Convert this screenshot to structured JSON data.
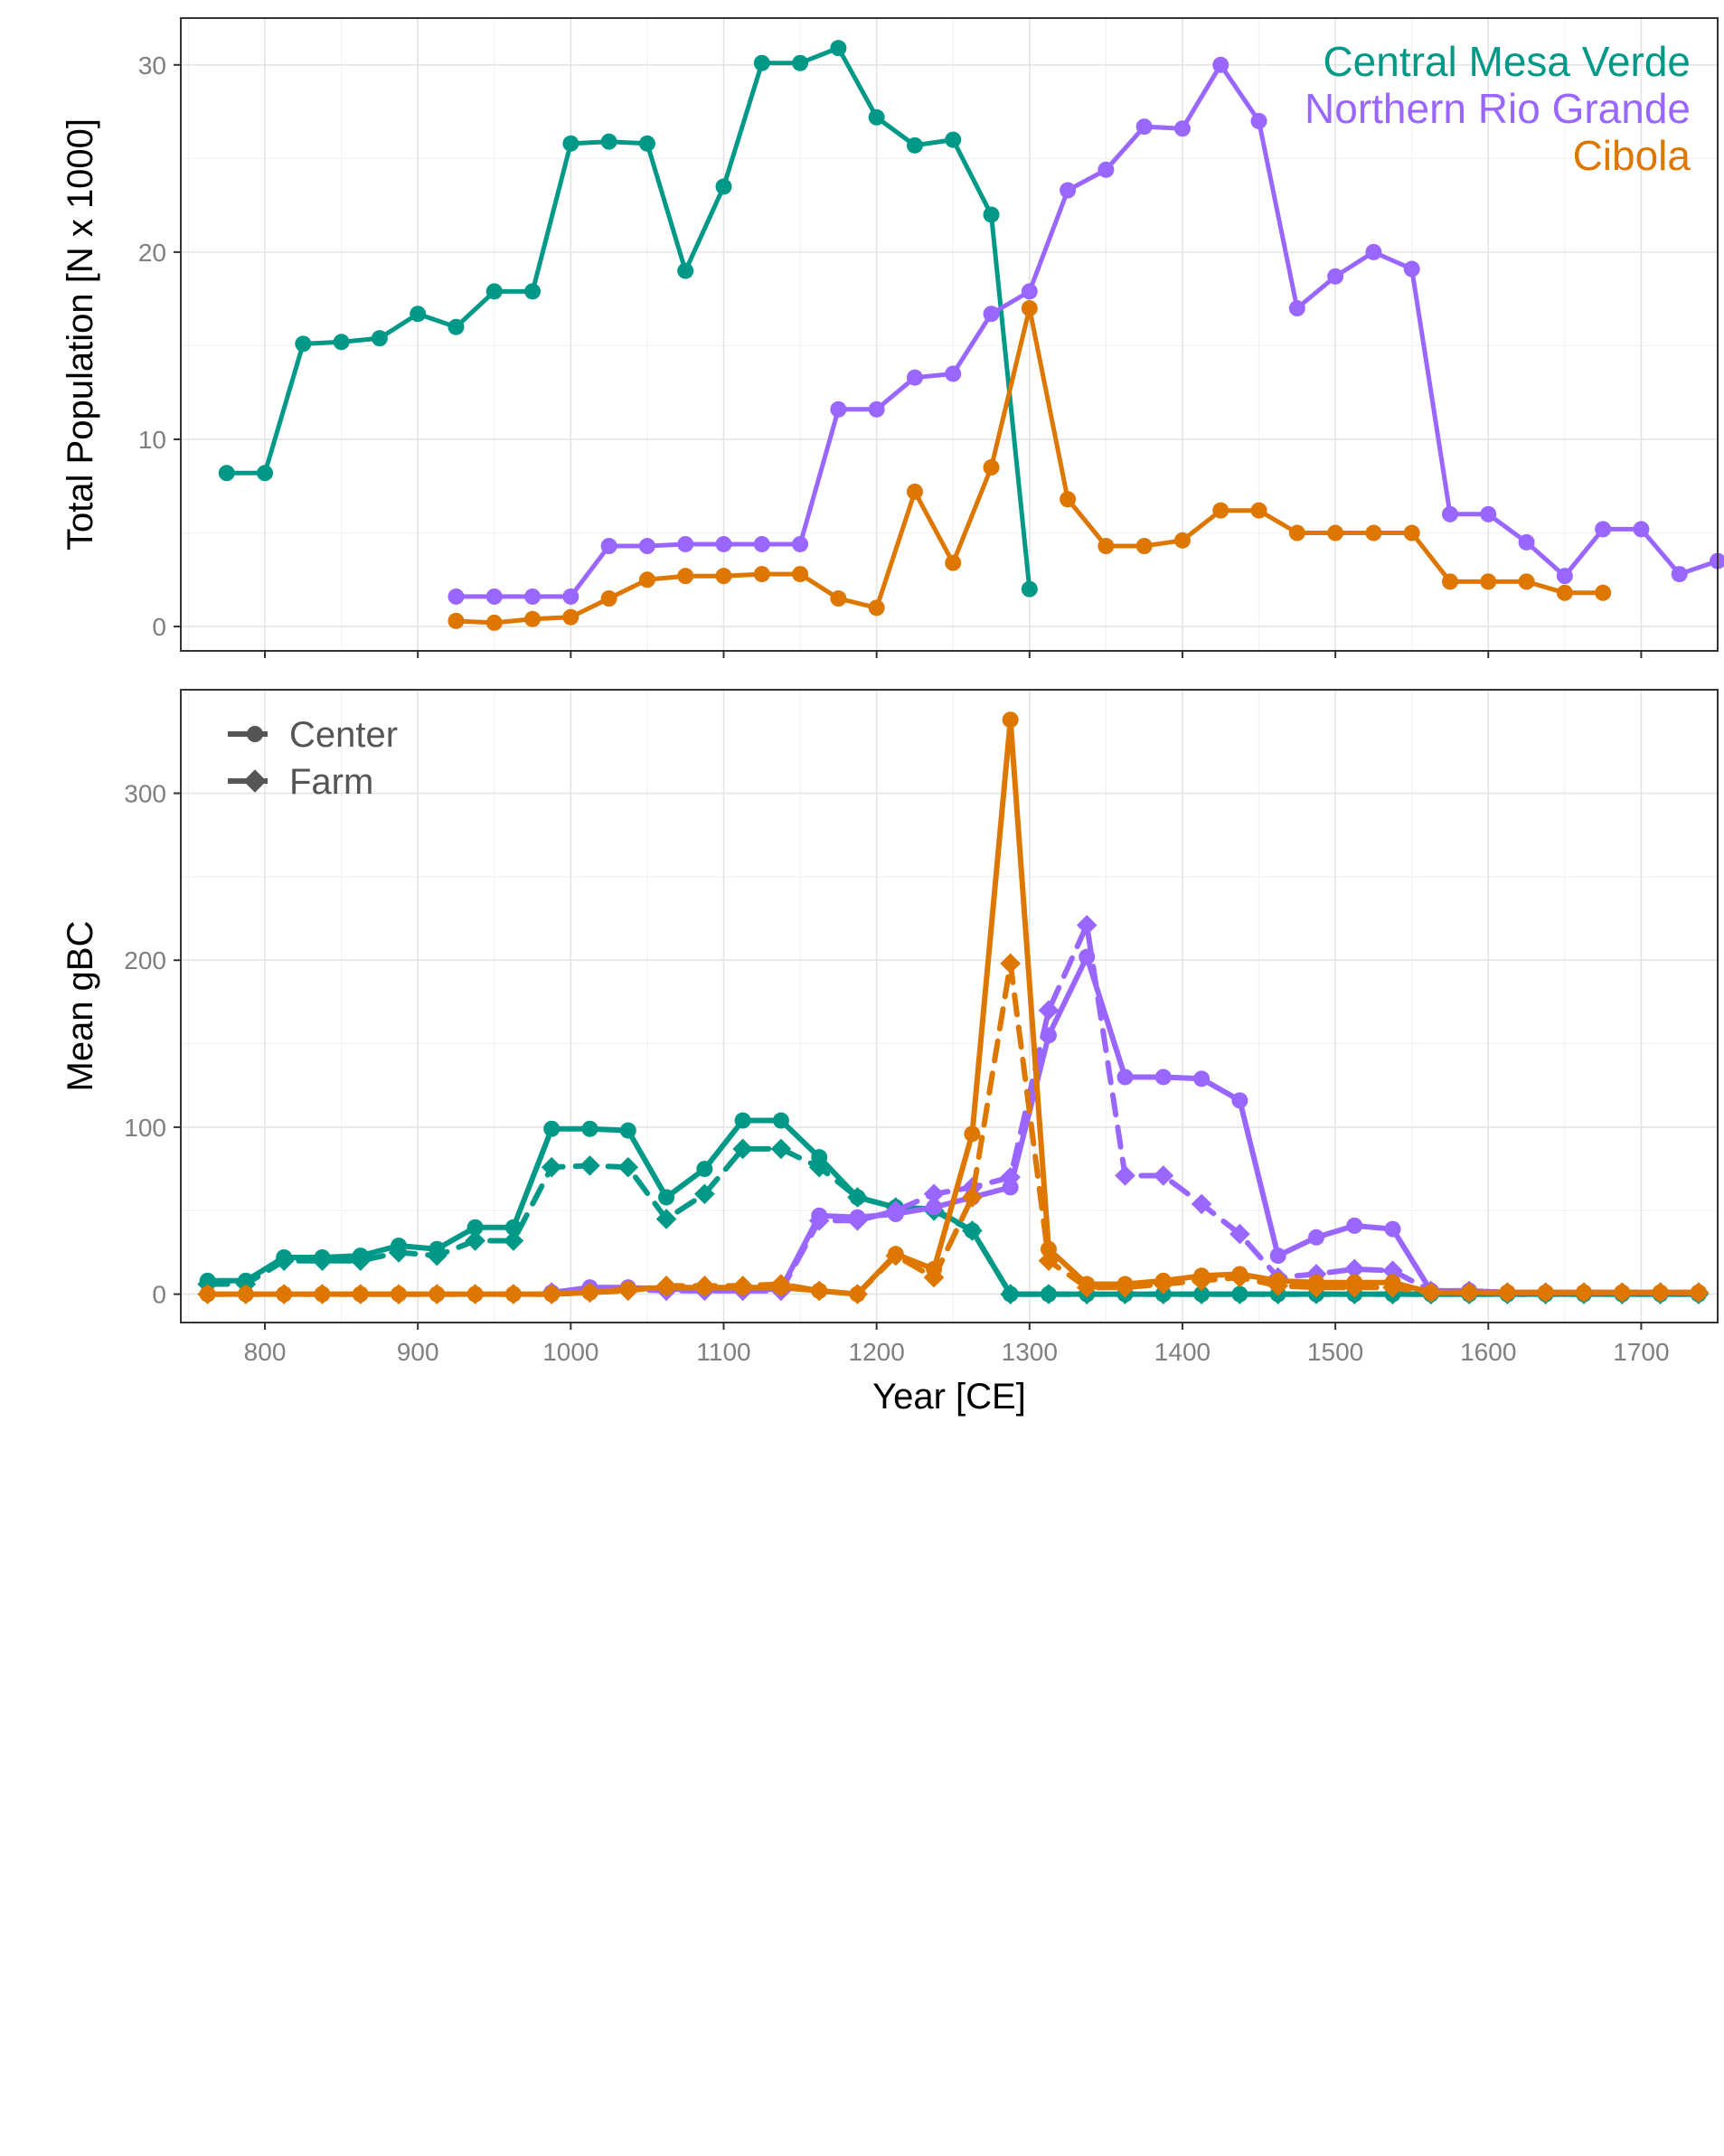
{
  "chart_data": [
    {
      "type": "line",
      "panel": "top",
      "ylabel": "Total Population [N x 1000]",
      "xlabel": "",
      "xlim": [
        745,
        1750
      ],
      "ylim": [
        -1.3,
        32.5
      ],
      "xticks": [
        800,
        900,
        1000,
        1100,
        1200,
        1300,
        1400,
        1500,
        1600,
        1700
      ],
      "xtick_labels_shown": false,
      "yticks": [
        0,
        10,
        20,
        30
      ],
      "grid": true,
      "legend_position": "top-right",
      "legend": [
        "Central Mesa Verde",
        "Northern Rio Grande",
        "Cibola"
      ],
      "series": [
        {
          "name": "Central Mesa Verde",
          "color": "#009988",
          "x": [
            775,
            800,
            825,
            850,
            875,
            900,
            925,
            950,
            975,
            1000,
            1025,
            1050,
            1075,
            1100,
            1125,
            1150,
            1175,
            1200,
            1225,
            1250,
            1275,
            1300
          ],
          "values": [
            8.2,
            8.2,
            15.1,
            15.2,
            15.4,
            16.7,
            16.0,
            17.9,
            17.9,
            25.8,
            25.9,
            25.8,
            19.0,
            23.5,
            30.1,
            30.1,
            30.9,
            27.2,
            25.7,
            26.0,
            22.0,
            2.0
          ]
        },
        {
          "name": "Northern Rio Grande",
          "color": "#9966FF",
          "x": [
            925,
            950,
            975,
            1000,
            1025,
            1050,
            1075,
            1100,
            1125,
            1150,
            1175,
            1200,
            1225,
            1250,
            1275,
            1300,
            1325,
            1350,
            1375,
            1400,
            1425,
            1450,
            1475,
            1500,
            1525,
            1550,
            1575,
            1600,
            1625,
            1650,
            1675,
            1700,
            1725,
            1750
          ],
          "values": [
            1.6,
            1.6,
            1.6,
            1.6,
            4.3,
            4.3,
            4.4,
            4.4,
            4.4,
            4.4,
            11.6,
            11.6,
            13.3,
            13.5,
            16.7,
            17.9,
            23.3,
            24.4,
            26.7,
            26.6,
            30.0,
            27.0,
            17.0,
            18.7,
            20.0,
            19.1,
            6.0,
            6.0,
            4.5,
            2.7,
            5.2,
            5.2,
            2.8,
            3.5
          ]
        },
        {
          "name": "Cibola",
          "color": "#DD7700",
          "x": [
            925,
            950,
            975,
            1000,
            1025,
            1050,
            1075,
            1100,
            1125,
            1150,
            1175,
            1200,
            1225,
            1250,
            1275,
            1300,
            1325,
            1350,
            1375,
            1400,
            1425,
            1450,
            1475,
            1500,
            1525,
            1550,
            1575,
            1600,
            1625,
            1650,
            1675
          ],
          "values": [
            0.3,
            0.2,
            0.4,
            0.5,
            1.5,
            2.5,
            2.7,
            2.7,
            2.8,
            2.8,
            1.5,
            1.0,
            7.2,
            3.4,
            8.5,
            17.0,
            6.8,
            4.3,
            4.3,
            4.6,
            6.2,
            6.2,
            5.0,
            5.0,
            5.0,
            5.0,
            2.4,
            2.4,
            2.4,
            1.8,
            1.8
          ]
        }
      ]
    },
    {
      "type": "line",
      "panel": "bottom",
      "ylabel": "Mean gBC",
      "xlabel": "Year [CE]",
      "xlim": [
        745,
        1750
      ],
      "ylim": [
        -17,
        362
      ],
      "xticks": [
        800,
        900,
        1000,
        1100,
        1200,
        1300,
        1400,
        1500,
        1600,
        1700
      ],
      "yticks": [
        0,
        100,
        200,
        300
      ],
      "grid": true,
      "legend_position": "top-left",
      "legend": [
        {
          "label": "Center",
          "marker": "circle",
          "linestyle": "solid"
        },
        {
          "label": "Farm",
          "marker": "diamond",
          "linestyle": "dashed"
        }
      ],
      "x": [
        762.5,
        787.5,
        812.5,
        837.5,
        862.5,
        887.5,
        912.5,
        937.5,
        962.5,
        987.5,
        1012.5,
        1037.5,
        1062.5,
        1087.5,
        1112.5,
        1137.5,
        1162.5,
        1187.5,
        1212.5,
        1237.5,
        1262.5,
        1287.5,
        1312.5,
        1337.5,
        1362.5,
        1387.5,
        1412.5,
        1437.5,
        1462.5,
        1487.5,
        1512.5,
        1537.5,
        1562.5,
        1587.5,
        1612.5,
        1637.5,
        1662.5,
        1687.5,
        1712.5,
        1737.5
      ],
      "series": [
        {
          "name": "Central Mesa Verde",
          "site": "Center",
          "color": "#009988",
          "values": [
            8,
            8,
            22,
            22,
            23,
            29,
            27,
            40,
            40,
            99,
            99,
            98,
            58,
            75,
            104,
            104,
            82,
            58,
            52,
            51,
            38,
            0,
            0,
            0,
            0,
            0,
            0,
            0,
            0,
            0,
            0,
            0,
            0,
            0,
            0,
            0,
            0,
            0,
            0,
            0
          ]
        },
        {
          "name": "Central Mesa Verde",
          "site": "Farm",
          "color": "#009988",
          "values": [
            6,
            6,
            20,
            20,
            20,
            25,
            23,
            32,
            32,
            76,
            77,
            76,
            45,
            60,
            87,
            87,
            76,
            58,
            52,
            50,
            38,
            0,
            0,
            0,
            0,
            0,
            0,
            0,
            0,
            0,
            0,
            0,
            0,
            0,
            0,
            0,
            0,
            0,
            0,
            0
          ]
        },
        {
          "name": "Northern Rio Grande",
          "site": "Center",
          "color": "#9966FF",
          "values": [
            null,
            null,
            null,
            null,
            null,
            null,
            null,
            null,
            null,
            1,
            4,
            4,
            3,
            3,
            3,
            3,
            47,
            46,
            48,
            52,
            58,
            64,
            155,
            202,
            130,
            130,
            129,
            116,
            23,
            34,
            41,
            39,
            2,
            2,
            1,
            1,
            1,
            1,
            1,
            1
          ]
        },
        {
          "name": "Northern Rio Grande",
          "site": "Farm",
          "color": "#9966FF",
          "values": [
            null,
            null,
            null,
            null,
            null,
            null,
            null,
            null,
            null,
            1,
            3,
            3,
            2,
            2,
            2,
            2,
            44,
            44,
            50,
            60,
            64,
            70,
            170,
            221,
            71,
            71,
            54,
            36,
            10,
            12,
            15,
            14,
            2,
            2,
            1,
            1,
            1,
            1,
            1,
            1
          ]
        },
        {
          "name": "Cibola",
          "site": "Center",
          "color": "#DD7700",
          "values": [
            0,
            0,
            0,
            0,
            0,
            0,
            0,
            0,
            0,
            0,
            1,
            3,
            4,
            4,
            4,
            4,
            2,
            0,
            24,
            15,
            96,
            344,
            27,
            6,
            6,
            8,
            11,
            12,
            8,
            7,
            7,
            7,
            1,
            1,
            1,
            1,
            1,
            1,
            1,
            1
          ]
        },
        {
          "name": "Cibola",
          "site": "Farm",
          "color": "#DD7700",
          "values": [
            0,
            0,
            0,
            0,
            0,
            0,
            0,
            0,
            0,
            0,
            1,
            2,
            5,
            5,
            5,
            6,
            2,
            0,
            23,
            10,
            58,
            198,
            20,
            4,
            4,
            6,
            8,
            10,
            5,
            4,
            4,
            4,
            1,
            1,
            1,
            1,
            1,
            1,
            1,
            1
          ]
        }
      ]
    }
  ]
}
